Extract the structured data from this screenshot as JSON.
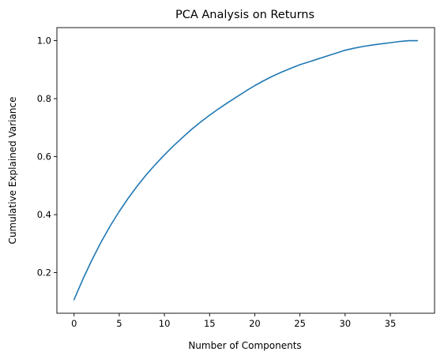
{
  "chart_data": {
    "type": "line",
    "title": "PCA Analysis on Returns",
    "xlabel": "Number of Components",
    "ylabel": "Cumulative Explained Variance",
    "xlim": [
      -1.9,
      39.9
    ],
    "ylim": [
      0.06,
      1.045
    ],
    "xticks": [
      0,
      5,
      10,
      15,
      20,
      25,
      30,
      35
    ],
    "xtick_labels": [
      "0",
      "5",
      "10",
      "15",
      "20",
      "25",
      "30",
      "35"
    ],
    "yticks": [
      0.2,
      0.4,
      0.6,
      0.8,
      1.0
    ],
    "ytick_labels": [
      "0.2",
      "0.4",
      "0.6",
      "0.8",
      "1.0"
    ],
    "grid": false,
    "legend": "none",
    "series": [
      {
        "color": "#1f77b4",
        "x": [
          0,
          1,
          2,
          3,
          4,
          5,
          6,
          7,
          8,
          9,
          10,
          11,
          12,
          13,
          14,
          15,
          16,
          17,
          18,
          19,
          20,
          21,
          22,
          23,
          24,
          25,
          26,
          27,
          28,
          29,
          30,
          31,
          32,
          33,
          34,
          35,
          36,
          37,
          38
        ],
        "y": [
          0.107,
          0.179,
          0.245,
          0.306,
          0.361,
          0.411,
          0.457,
          0.499,
          0.538,
          0.573,
          0.606,
          0.637,
          0.666,
          0.694,
          0.719,
          0.743,
          0.765,
          0.786,
          0.806,
          0.826,
          0.845,
          0.862,
          0.878,
          0.892,
          0.905,
          0.917,
          0.927,
          0.937,
          0.947,
          0.957,
          0.967,
          0.974,
          0.98,
          0.985,
          0.989,
          0.993,
          0.997,
          1.0,
          1.0
        ]
      }
    ]
  }
}
